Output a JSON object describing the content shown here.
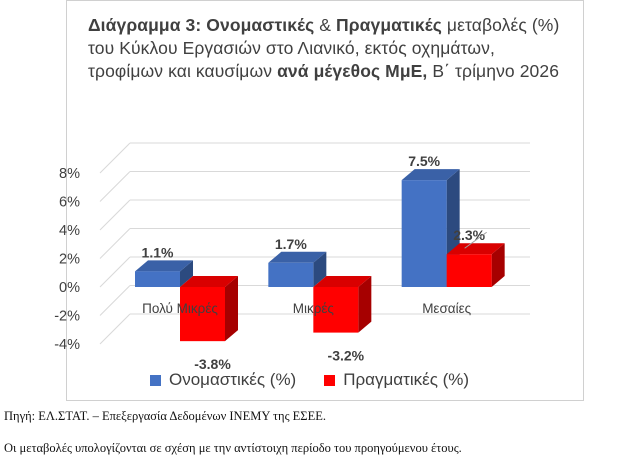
{
  "title_parts": {
    "p1": "Διάγραμμα 3: Ονομαστικές",
    "p2": " & ",
    "p3": "Πραγματικές",
    "p4": " μεταβολές (%) του Κύκλου Εργασιών στο Λιανικό, εκτός οχημάτων, τροφίμων και καυσίμων ",
    "p5": "ανά μέγεθος ΜμΕ,",
    "p6": " Β΄ τρίμηνο 2026"
  },
  "colors": {
    "nominal": "#4472c4",
    "real": "#ff0000"
  },
  "chart_data": {
    "type": "bar",
    "title": "Διάγραμμα 3: Ονομαστικές & Πραγματικές μεταβολές (%) του Κύκλου Εργασιών στο Λιανικό, εκτός οχημάτων, τροφίμων και καυσίμων ανά μέγεθος ΜμΕ, Β΄ τρίμηνο 2026",
    "categories": [
      "Πολύ Μικρές",
      "Μικρές",
      "Μεσαίες"
    ],
    "series": [
      {
        "name": "Ονομαστικές (%)",
        "values": [
          1.1,
          1.7,
          7.5
        ],
        "labels": [
          "1.1%",
          "1.7%",
          "7.5%"
        ]
      },
      {
        "name": "Πραγματικές (%)",
        "values": [
          -3.8,
          -3.2,
          2.3
        ],
        "labels": [
          "-3.8%",
          "-3.2%",
          "2.3%"
        ]
      }
    ],
    "ylim": [
      -4,
      8
    ],
    "yticks": [
      "8%",
      "6%",
      "4%",
      "2%",
      "0%",
      "-2%",
      "-4%"
    ],
    "legend": "bottom",
    "grid": true
  },
  "footer": {
    "source": "Πηγή: ΕΛ.ΣΤΑΤ. – Επεξεργασία Δεδομένων ΙΝΕΜΥ της ΕΣΕΕ.",
    "note": "Οι μεταβολές υπολογίζονται σε σχέση με την αντίστοιχη περίοδο του προηγούμενου έτους."
  }
}
